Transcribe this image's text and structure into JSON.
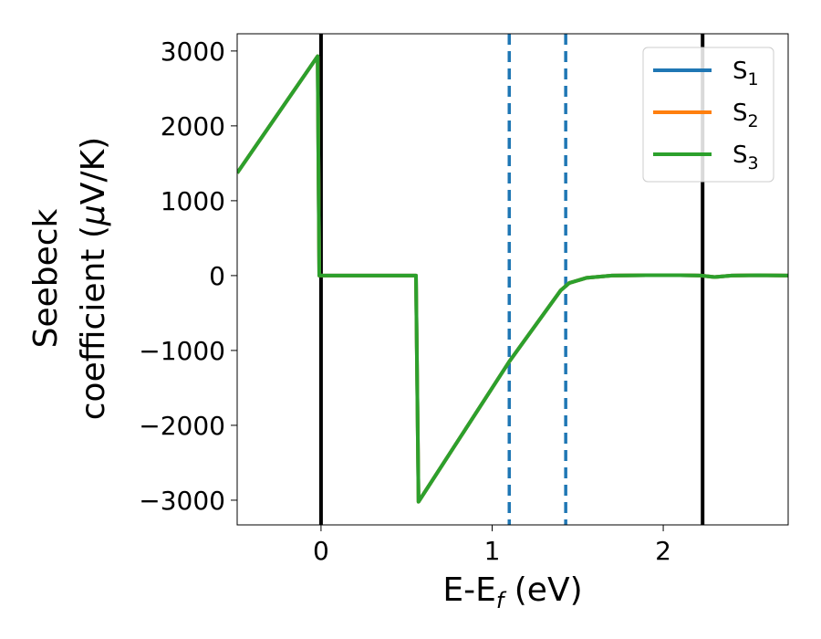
{
  "chart_data": {
    "type": "line",
    "xlabel": {
      "main": "E-E",
      "sub": "f",
      "unit": " (eV)"
    },
    "ylabel": {
      "line1": "Seebeck",
      "line2": "coefficient  (",
      "mu": "μ",
      "unit": "V/K)"
    },
    "xlim": [
      -0.49,
      2.73
    ],
    "ylim": [
      -3330,
      3230
    ],
    "x_ticks": [
      0,
      1,
      2
    ],
    "x_tick_labels": [
      "0",
      "1",
      "2"
    ],
    "y_ticks": [
      -3000,
      -2000,
      -1000,
      0,
      1000,
      2000,
      3000
    ],
    "y_tick_labels": [
      "−3000",
      "−2000",
      "−1000",
      "0",
      "1000",
      "2000",
      "3000"
    ],
    "legend_position": "top-right",
    "series": [
      {
        "name": "S",
        "sub": "1",
        "color": "#1f77b4",
        "visible": "hidden-under-S3"
      },
      {
        "name": "S",
        "sub": "2",
        "color": "#ff7f0e",
        "visible": "hidden-under-S3"
      },
      {
        "name": "S",
        "sub": "3",
        "color": "#2ca02c",
        "visible": "drawn"
      }
    ],
    "curve": {
      "x": [
        -0.49,
        -0.02,
        -0.01,
        0.55,
        0.555,
        0.57,
        1.1,
        1.4,
        1.45,
        1.55,
        1.7,
        1.9,
        2.1,
        2.22,
        2.3,
        2.4,
        2.55,
        2.73
      ],
      "y": [
        1370,
        2930,
        0,
        0,
        0,
        -3020,
        -1150,
        -200,
        -100,
        -30,
        0,
        5,
        5,
        0,
        -20,
        0,
        5,
        0
      ]
    },
    "vertical_lines": [
      {
        "x": 0.0,
        "style": "solid",
        "color": "#000000"
      },
      {
        "x": 2.23,
        "style": "solid",
        "color": "#000000"
      },
      {
        "x": 1.1,
        "style": "dashed",
        "color": "#1f77b4"
      },
      {
        "x": 1.43,
        "style": "dashed",
        "color": "#1f77b4"
      }
    ]
  }
}
